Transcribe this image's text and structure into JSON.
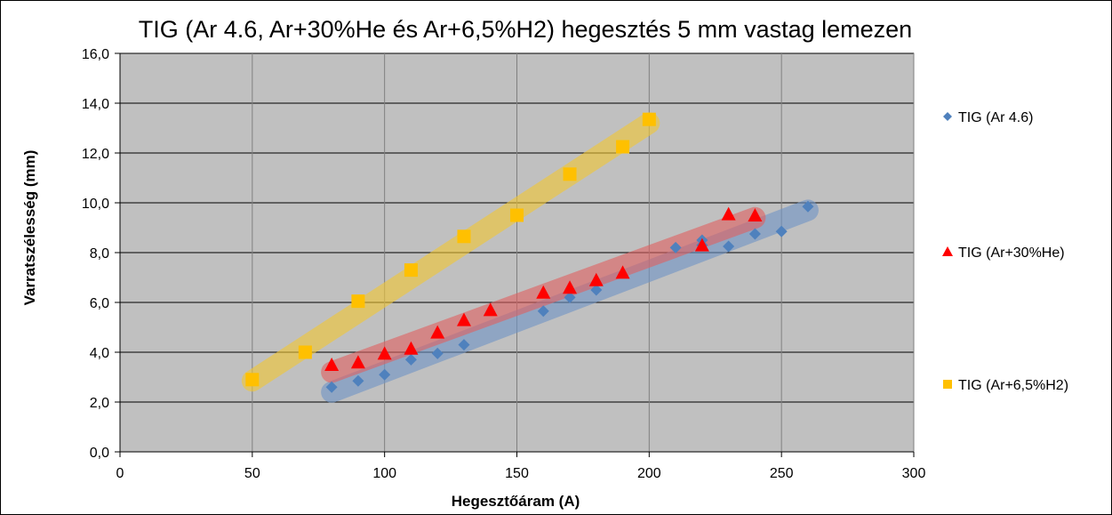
{
  "chart_data": {
    "type": "scatter",
    "title": "TIG (Ar 4.6, Ar+30%He és Ar+6,5%H2) hegesztés 5 mm vastag lemezen",
    "xlabel": "Hegesztőáram (A)",
    "ylabel": "Varratszélesség (mm)",
    "xlim": [
      0,
      300
    ],
    "ylim": [
      0,
      16
    ],
    "x_ticks": [
      "0",
      "50",
      "100",
      "150",
      "200",
      "250",
      "300"
    ],
    "y_ticks": [
      "0,0",
      "2,0",
      "4,0",
      "6,0",
      "8,0",
      "10,0",
      "12,0",
      "14,0",
      "16,0"
    ],
    "grid": true,
    "plot_background": "#c0c0c0",
    "legend_position": "right",
    "series": [
      {
        "name": "TIG (Ar 4.6)",
        "marker": "diamond",
        "color": "#4f81bd",
        "band_color": "#6f94c6",
        "x": [
          80,
          90,
          100,
          110,
          120,
          130,
          160,
          170,
          180,
          210,
          220,
          220,
          230,
          240,
          250,
          260
        ],
        "y": [
          2.6,
          2.85,
          3.1,
          3.7,
          3.95,
          4.3,
          5.65,
          6.2,
          6.5,
          8.2,
          8.5,
          8.3,
          8.25,
          8.75,
          8.85,
          9.85
        ],
        "trend": {
          "x": [
            80,
            260
          ],
          "y": [
            2.4,
            9.7
          ]
        }
      },
      {
        "name": "TIG (Ar+30%He)",
        "marker": "triangle",
        "color": "#ff0000",
        "band_color": "#e06060",
        "x": [
          80,
          90,
          100,
          110,
          120,
          130,
          140,
          160,
          170,
          180,
          190,
          220,
          230,
          240
        ],
        "y": [
          3.5,
          3.6,
          3.95,
          4.15,
          4.8,
          5.3,
          5.7,
          6.4,
          6.6,
          6.9,
          7.2,
          8.3,
          9.55,
          9.5
        ],
        "trend": {
          "x": [
            80,
            240
          ],
          "y": [
            3.2,
            9.4
          ]
        }
      },
      {
        "name": "TIG (Ar+6,5%H2)",
        "marker": "square",
        "color": "#ffc000",
        "band_color": "#f3c832",
        "x": [
          50,
          70,
          90,
          110,
          130,
          150,
          170,
          190,
          200
        ],
        "y": [
          2.9,
          4.0,
          6.05,
          7.3,
          8.65,
          9.5,
          11.15,
          12.25,
          13.35
        ],
        "trend": {
          "x": [
            50,
            200
          ],
          "y": [
            2.85,
            13.2
          ]
        }
      }
    ]
  }
}
